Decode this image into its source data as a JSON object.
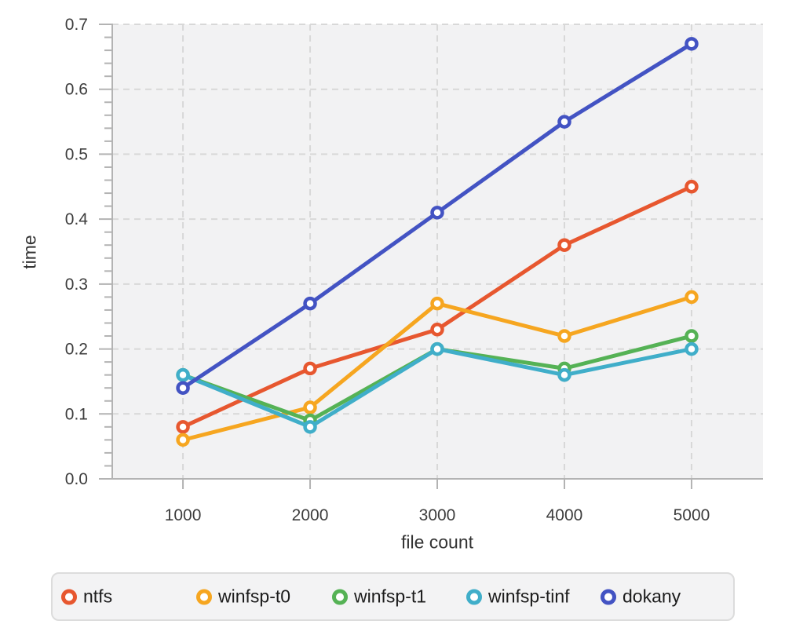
{
  "chart_data": {
    "type": "line",
    "title": "",
    "xlabel": "file count",
    "ylabel": "time",
    "x": [
      1000,
      2000,
      3000,
      4000,
      5000
    ],
    "series": [
      {
        "name": "ntfs",
        "color": "#e7572f",
        "values": [
          0.08,
          0.17,
          0.23,
          0.36,
          0.45
        ]
      },
      {
        "name": "winfsp-t0",
        "color": "#f6a620",
        "values": [
          0.06,
          0.11,
          0.27,
          0.22,
          0.28
        ]
      },
      {
        "name": "winfsp-t1",
        "color": "#55b255",
        "values": [
          0.16,
          0.09,
          0.2,
          0.17,
          0.22
        ]
      },
      {
        "name": "winfsp-tinf",
        "color": "#40aec9",
        "values": [
          0.16,
          0.08,
          0.2,
          0.16,
          0.2
        ]
      },
      {
        "name": "dokany",
        "color": "#4353c3",
        "values": [
          0.14,
          0.27,
          0.41,
          0.55,
          0.67
        ]
      }
    ],
    "x_ticks": [
      1000,
      2000,
      3000,
      4000,
      5000
    ],
    "x_tick_labels": [
      "1000",
      "2000",
      "3000",
      "4000",
      "5000"
    ],
    "y_ticks": [
      0.0,
      0.1,
      0.2,
      0.3,
      0.4,
      0.5,
      0.6,
      0.7
    ],
    "y_tick_labels": [
      "0.0",
      "0.1",
      "0.2",
      "0.3",
      "0.4",
      "0.5",
      "0.6",
      "0.7"
    ],
    "y_minor_step": 0.02,
    "xlim": [
      444,
      5562
    ],
    "ylim": [
      0.0,
      0.7
    ],
    "grid": true,
    "legend_position": "bottom",
    "marker": "open-circle"
  },
  "style": {
    "plot_bg": "#f2f2f3",
    "grid_color": "#d8d8d8",
    "axis_color": "#b3b3b3",
    "tick_label_color": "#3d3d3d",
    "axis_label_color": "#333333",
    "legend_bg": "#f3f3f4",
    "legend_border": "#dcdcdc",
    "legend_text_color": "#1c1c1c"
  }
}
